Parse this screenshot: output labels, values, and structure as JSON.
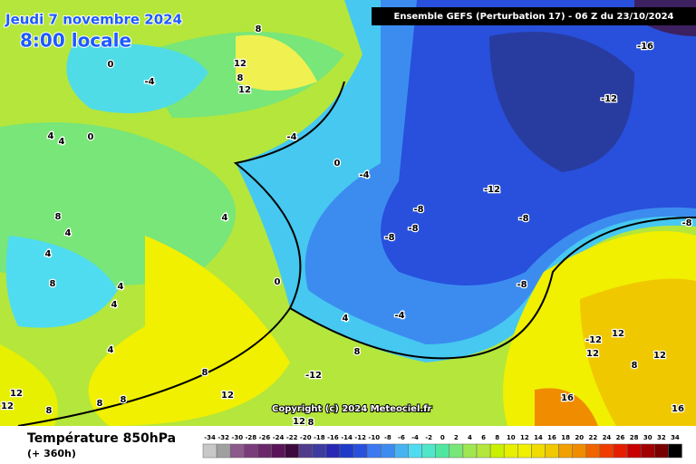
{
  "header": {
    "title": "Jeudi 7 novembre 2024",
    "time": "8:00 locale",
    "model": "Ensemble GEFS  (Perturbation 17)  -  06 Z du 23/10/2024"
  },
  "map": {
    "copyright": "Copyright (c) 2024 Meteociel.fr",
    "contour_labels": [
      "0",
      "-4",
      "4",
      "0",
      "-4",
      "8",
      "12",
      "8",
      "12",
      "4",
      "0",
      "-4",
      "-16",
      "-12",
      "-12",
      "-8",
      "-8",
      "-8",
      "-8",
      "-8",
      "4",
      "8",
      "4",
      "4",
      "8",
      "4",
      "4",
      "0",
      "4",
      "-4",
      "4",
      "8",
      "8",
      "-12",
      "12",
      "8",
      "8",
      "12",
      "12",
      "8",
      "-12",
      "12",
      "12",
      "8",
      "12",
      "16",
      "16",
      "12",
      "8",
      "-8"
    ]
  },
  "footer": {
    "variable": "Température 850hPa",
    "lead": "(+ 360h)"
  },
  "colorbar": {
    "ticks": [
      -34,
      -32,
      -30,
      -28,
      -26,
      -24,
      -22,
      -20,
      -18,
      -16,
      -14,
      -12,
      -10,
      -8,
      -6,
      -4,
      -2,
      0,
      2,
      4,
      6,
      8,
      10,
      12,
      14,
      16,
      18,
      20,
      22,
      24,
      26,
      28,
      30,
      32,
      34
    ]
  }
}
